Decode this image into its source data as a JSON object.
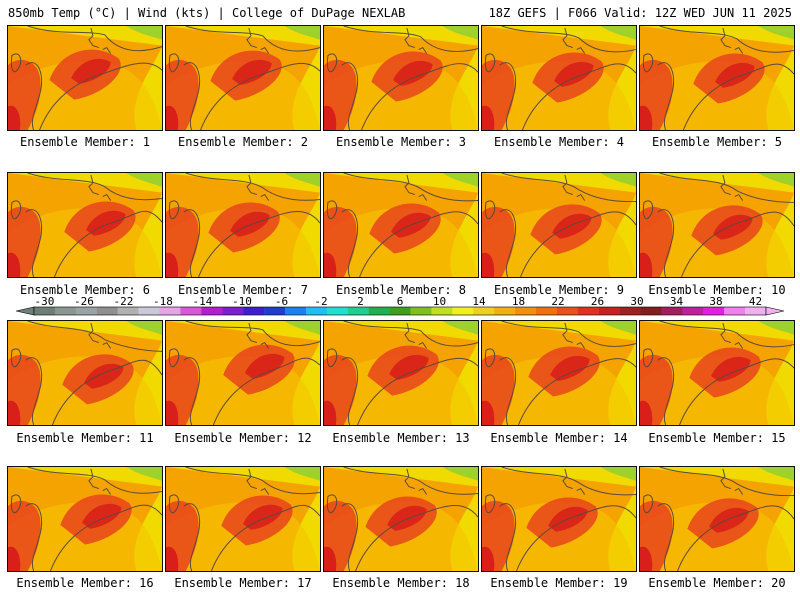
{
  "header": {
    "left_title": "850mb Temp (°C) | Wind (kts) | College of DuPage NEXLAB",
    "right_title": "18Z GEFS | F066 Valid: 12Z WED JUN 11 2025"
  },
  "members": [
    "Ensemble Member: 1",
    "Ensemble Member: 2",
    "Ensemble Member: 3",
    "Ensemble Member: 4",
    "Ensemble Member: 5",
    "Ensemble Member: 6",
    "Ensemble Member: 7",
    "Ensemble Member: 8",
    "Ensemble Member: 9",
    "Ensemble Member: 10",
    "Ensemble Member: 11",
    "Ensemble Member: 12",
    "Ensemble Member: 13",
    "Ensemble Member: 14",
    "Ensemble Member: 15",
    "Ensemble Member: 16",
    "Ensemble Member: 17",
    "Ensemble Member: 18",
    "Ensemble Member: 19",
    "Ensemble Member: 20"
  ],
  "colorbar": {
    "tick_labels": [
      "-30",
      "-26",
      "-22",
      "-18",
      "-14",
      "-10",
      "-6",
      "-2",
      "2",
      "6",
      "10",
      "14",
      "18",
      "22",
      "26",
      "30",
      "34",
      "38",
      "42"
    ],
    "colors": [
      "#6e7f75",
      "#8a9690",
      "#9aa4a5",
      "#8f8f8f",
      "#b0b0b0",
      "#c9c9d9",
      "#e6a3e6",
      "#d65ad6",
      "#b01fd0",
      "#7b1fd0",
      "#3e1fd0",
      "#1f3ed0",
      "#1f7ef0",
      "#1fbff0",
      "#1fdfd0",
      "#1fcf8f",
      "#1fb04f",
      "#3f9f1f",
      "#7fbf1f",
      "#bfdf1f",
      "#f0f01f",
      "#f0d01f",
      "#f0b00f",
      "#f0900f",
      "#f0700f",
      "#e8501f",
      "#e0301f",
      "#c81f1f",
      "#a01f1f",
      "#801f1f",
      "#a01f5f",
      "#c01f9f",
      "#e01fdf",
      "#f07ff0",
      "#f0b0f0"
    ]
  },
  "style": {
    "field_base": "#f5a300",
    "warm": "#e8441c",
    "hot": "#d61a1a",
    "mild": "#f5c400",
    "cool": "#f0e000",
    "coolest": "#9ed12a",
    "contour": "#5a4a3a"
  }
}
